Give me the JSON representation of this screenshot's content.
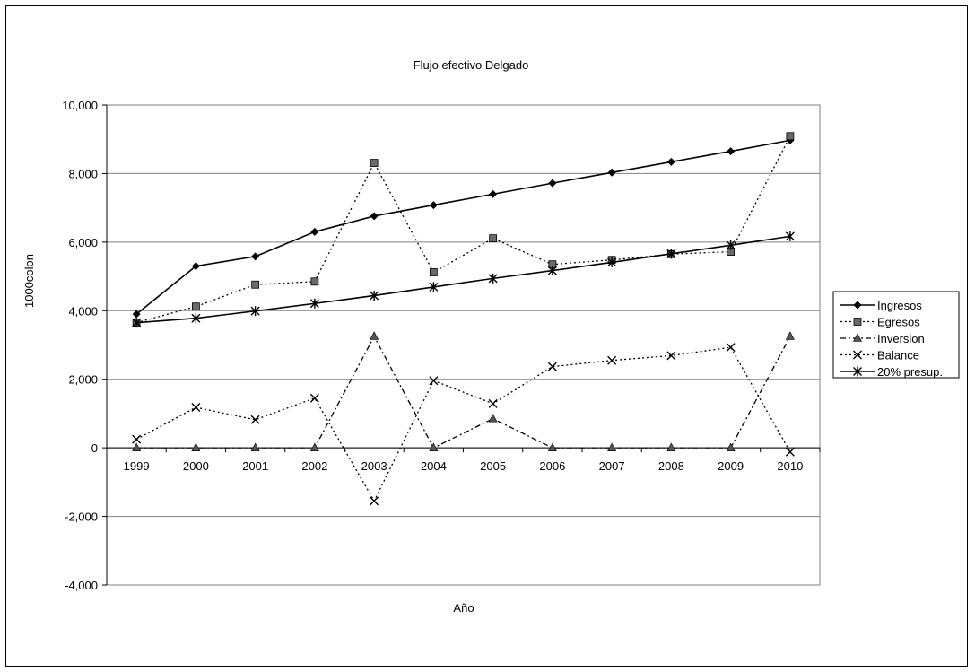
{
  "chart_data": {
    "type": "line",
    "title": "Flujo efectivo Delgado",
    "xlabel": "Año",
    "ylabel": "1000colon",
    "categories": [
      "1999",
      "2000",
      "2001",
      "2002",
      "2003",
      "2004",
      "2005",
      "2006",
      "2007",
      "2008",
      "2009",
      "2010"
    ],
    "ylim": [
      -4000,
      10000
    ],
    "yticks": [
      10000,
      8000,
      6000,
      4000,
      2000,
      0,
      -2000,
      -4000
    ],
    "ytick_labels": [
      "10,000",
      "8,000",
      "6,000",
      "4,000",
      "2,000",
      "0",
      "-2,000",
      "-4,000"
    ],
    "grid": "horizontal",
    "legend_position": "right",
    "series": [
      {
        "name": "Ingresos",
        "marker": "diamond",
        "dash": "solid",
        "values": [
          3900,
          5300,
          5580,
          6300,
          6760,
          7080,
          7400,
          7720,
          8030,
          8340,
          8650,
          8970
        ]
      },
      {
        "name": "Egresos",
        "marker": "square",
        "dash": "dotted",
        "values": [
          3650,
          4120,
          4760,
          4850,
          8310,
          5120,
          6110,
          5350,
          5480,
          5650,
          5720,
          9090
        ]
      },
      {
        "name": "Inversion",
        "marker": "triangle",
        "dash": "dashdot",
        "values": [
          0,
          0,
          0,
          0,
          3250,
          0,
          850,
          0,
          0,
          0,
          0,
          3250
        ]
      },
      {
        "name": "Balance",
        "marker": "x",
        "dash": "dotted",
        "values": [
          250,
          1180,
          820,
          1450,
          -1550,
          1960,
          1290,
          2370,
          2550,
          2690,
          2930,
          -120
        ]
      },
      {
        "name": "20% presup.",
        "marker": "star",
        "dash": "solid",
        "values": [
          3650,
          3780,
          3990,
          4210,
          4440,
          4690,
          4940,
          5170,
          5410,
          5660,
          5910,
          6170
        ]
      }
    ]
  }
}
